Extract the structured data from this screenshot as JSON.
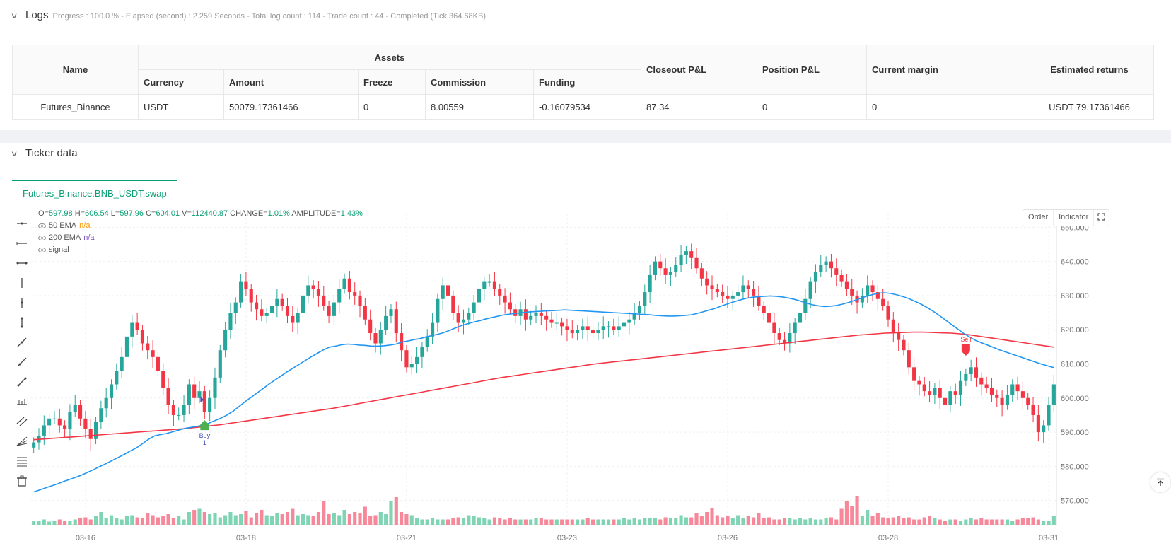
{
  "logs": {
    "title": "Logs",
    "status": "Progress : 100.0 % - Elapsed (second) : 2.259  Seconds - Total log count : 114 - Trade count : 44 - Completed (Tick 364.68KB)"
  },
  "assets_table": {
    "group_header": "Assets",
    "headers": {
      "name": "Name",
      "currency": "Currency",
      "amount": "Amount",
      "freeze": "Freeze",
      "commission": "Commission",
      "funding": "Funding",
      "closeout_pl": "Closeout P&L",
      "position_pl": "Position P&L",
      "current_margin": "Current margin",
      "estimated_returns": "Estimated returns"
    },
    "row": {
      "name": "Futures_Binance",
      "currency": "USDT",
      "amount": "50079.17361466",
      "freeze": "0",
      "commission": "8.00559",
      "funding": "-0.16079534",
      "closeout_pl": "87.34",
      "position_pl": "0",
      "current_margin": "0",
      "estimated_returns": "USDT 79.17361466"
    }
  },
  "ticker": {
    "title": "Ticker data",
    "tab": "Futures_Binance.BNB_USDT.swap",
    "ohlc": {
      "o_label": "O=",
      "o": "597.98",
      "h_label": "H=",
      "h": "606.54",
      "l_label": "L=",
      "l": "597.96",
      "c_label": "C=",
      "c": "604.01",
      "v_label": "V=",
      "v": "112440.87",
      "change_label": "CHANGE=",
      "change": "1.01%",
      "amplitude_label": "AMPLITUDE=",
      "amplitude": "1.43%"
    },
    "legend": [
      {
        "name": "50 EMA",
        "value": "n/a",
        "color": "#ff9800"
      },
      {
        "name": "200 EMA",
        "value": "n/a",
        "color": "#7e57c2"
      },
      {
        "name": "signal",
        "value": ""
      }
    ],
    "buttons": {
      "order": "Order",
      "indicator": "Indicator"
    }
  },
  "chart_data": {
    "type": "candlestick",
    "x_ticks": [
      "03-16",
      "03-18",
      "03-21",
      "03-23",
      "03-26",
      "03-28",
      "03-31"
    ],
    "y_ticks": [
      "650.000",
      "640.000",
      "630.000",
      "620.000",
      "610.000",
      "600.000",
      "590.000",
      "580.000",
      "570.000"
    ],
    "ylim": [
      566,
      654
    ],
    "series_colors": {
      "up": "#26a69a",
      "down": "#f23645",
      "ema50": "#2196f3",
      "ema200": "#f23645"
    },
    "closes": [
      587,
      589,
      592,
      594,
      594,
      592,
      591,
      596,
      598,
      594,
      591,
      588,
      593,
      597,
      600,
      604,
      608,
      612,
      618,
      622,
      620,
      616,
      614,
      612,
      608,
      603,
      598,
      595,
      595,
      598,
      604,
      600,
      602,
      596,
      600,
      606,
      614,
      620,
      625,
      628,
      634,
      632,
      628,
      626,
      624,
      625,
      627,
      629,
      627,
      624,
      622,
      625,
      630,
      633,
      632,
      630,
      627,
      624,
      628,
      632,
      635,
      631,
      630,
      627,
      623,
      619,
      616,
      620,
      624,
      626,
      619,
      614,
      609,
      610,
      612,
      615,
      618,
      622,
      629,
      633,
      630,
      625,
      622,
      623,
      625,
      628,
      632,
      634,
      634,
      632,
      630,
      628,
      626,
      624,
      626,
      623,
      624,
      625,
      624,
      623,
      622,
      622,
      621,
      620,
      619,
      620,
      621,
      620,
      619,
      620,
      621,
      621,
      620,
      621,
      622,
      623,
      625,
      627,
      631,
      636,
      640,
      638,
      636,
      637,
      639,
      642,
      643,
      641,
      638,
      635,
      633,
      632,
      631,
      630,
      629,
      630,
      631,
      633,
      632,
      630,
      627,
      625,
      622,
      619,
      617,
      616,
      619,
      622,
      625,
      629,
      634,
      637,
      639,
      640,
      638,
      636,
      634,
      632,
      630,
      628,
      630,
      633,
      631,
      629,
      627,
      623,
      619,
      617,
      614,
      609,
      605,
      604,
      602,
      601,
      603,
      600,
      598,
      602,
      601,
      605,
      607,
      609,
      606,
      604,
      603,
      601,
      600,
      598,
      601,
      604,
      602,
      600,
      598,
      595,
      590,
      592,
      598,
      604
    ],
    "ema50": [
      572.5,
      573.1,
      573.7,
      574.3,
      574.9,
      575.6,
      576.2,
      576.8,
      577.5,
      578.3,
      579.1,
      580.0,
      580.8,
      581.7,
      582.6,
      583.5,
      584.5,
      585.4,
      586.6,
      587.9,
      588.9,
      589.3,
      589.6,
      590.1,
      590.6,
      591.1,
      591.4,
      591.7,
      592.0,
      592.6,
      593.4,
      594.1,
      595.0,
      596.1,
      597.5,
      598.9,
      600.2,
      601.5,
      602.8,
      604.1,
      605.3,
      606.5,
      607.7,
      608.8,
      609.9,
      611.0,
      612.1,
      613.1,
      614.1,
      614.9,
      615.2,
      615.6,
      615.8,
      615.7,
      615.5,
      615.4,
      615.2,
      615.2,
      615.3,
      615.5,
      615.8,
      616.4,
      616.7,
      617.1,
      617.4,
      617.9,
      618.3,
      618.7,
      619.2,
      619.9,
      620.6,
      621.3,
      621.8,
      622.3,
      622.7,
      623.2,
      623.6,
      624.0,
      624.4,
      624.6,
      624.8,
      625.0,
      625.2,
      625.3,
      625.4,
      625.5,
      625.6,
      625.7,
      625.8,
      625.7,
      625.6,
      625.5,
      625.4,
      625.3,
      625.2,
      625.1,
      625.0,
      624.9,
      624.8,
      624.7,
      624.6,
      624.5,
      624.4,
      624.2,
      624.1,
      624.0,
      624.0,
      624.1,
      624.2,
      624.4,
      624.8,
      625.3,
      625.8,
      626.3,
      627.0,
      627.6,
      628.2,
      628.7,
      629.2,
      629.5,
      629.7,
      629.8,
      629.9,
      629.8,
      629.6,
      629.3,
      628.9,
      628.4,
      627.8,
      627.3,
      627.0,
      626.8,
      626.9,
      627.1,
      627.5,
      628.0,
      628.6,
      629.2,
      629.8,
      630.3,
      630.7,
      630.8,
      630.6,
      630.2,
      629.7,
      629.1,
      628.3,
      627.5,
      626.5,
      625.4,
      624.2,
      622.9,
      621.6,
      620.3,
      619.0,
      617.9,
      616.9,
      616.2,
      615.5,
      614.8,
      614.1,
      613.5,
      612.9,
      612.3,
      611.7,
      611.1,
      610.5,
      609.9,
      609.4,
      608.9
    ],
    "ema200": [
      587.8,
      588.0,
      588.2,
      588.4,
      588.6,
      588.8,
      589.0,
      589.2,
      589.4,
      589.6,
      589.8,
      590.0,
      590.2,
      590.4,
      590.6,
      590.8,
      591.0,
      591.3,
      591.6,
      591.9,
      592.2,
      592.6,
      593.0,
      593.4,
      593.8,
      594.2,
      594.6,
      595.0,
      595.4,
      595.8,
      596.2,
      596.6,
      597.0,
      597.5,
      598.0,
      598.5,
      599.0,
      599.5,
      600.0,
      600.5,
      601.0,
      601.5,
      602.0,
      602.5,
      603.0,
      603.5,
      604.0,
      604.5,
      605.0,
      605.5,
      606.0,
      606.4,
      606.8,
      607.2,
      607.6,
      608.0,
      608.4,
      608.8,
      609.2,
      609.6,
      610.0,
      610.3,
      610.6,
      610.9,
      611.2,
      611.5,
      611.8,
      612.1,
      612.4,
      612.7,
      613.0,
      613.3,
      613.6,
      613.9,
      614.2,
      614.5,
      614.8,
      615.1,
      615.4,
      615.7,
      616.0,
      616.3,
      616.6,
      616.9,
      617.2,
      617.5,
      617.8,
      618.1,
      618.4,
      618.6,
      618.8,
      619.0,
      619.1,
      619.2,
      619.3,
      619.3,
      619.2,
      619.1,
      619.0,
      618.8,
      618.5,
      618.1,
      617.7,
      617.3,
      616.9,
      616.5,
      616.1,
      615.7,
      615.3,
      614.9
    ],
    "volumes": [
      4,
      4,
      5,
      3,
      4,
      5,
      4,
      4,
      5,
      6,
      7,
      5,
      8,
      12,
      6,
      9,
      6,
      5,
      8,
      9,
      7,
      6,
      11,
      9,
      7,
      8,
      10,
      6,
      8,
      5,
      12,
      14,
      15,
      12,
      10,
      11,
      7,
      9,
      12,
      9,
      10,
      13,
      7,
      11,
      14,
      9,
      8,
      11,
      10,
      12,
      15,
      9,
      10,
      9,
      8,
      12,
      22,
      10,
      11,
      9,
      14,
      10,
      12,
      11,
      17,
      8,
      9,
      12,
      10,
      22,
      26,
      12,
      10,
      9,
      6,
      5,
      5,
      6,
      5,
      5,
      5,
      6,
      7,
      6,
      9,
      8,
      7,
      6,
      5,
      7,
      6,
      5,
      6,
      5,
      5,
      5,
      5,
      6,
      6,
      5,
      5,
      5,
      5,
      5,
      5,
      5,
      5,
      6,
      5,
      5,
      5,
      5,
      5,
      5,
      6,
      5,
      6,
      5,
      6,
      6,
      6,
      5,
      7,
      6,
      6,
      9,
      7,
      7,
      11,
      8,
      12,
      16,
      9,
      7,
      8,
      6,
      9,
      6,
      8,
      7,
      11,
      6,
      7,
      5,
      5,
      6,
      6,
      5,
      6,
      5,
      6,
      5,
      5,
      6,
      7,
      5,
      15,
      22,
      18,
      27,
      8,
      14,
      8,
      11,
      7,
      6,
      7,
      8,
      6,
      7,
      5,
      5,
      7,
      8,
      6,
      5,
      4,
      5,
      5,
      4,
      5,
      6,
      5,
      6,
      5,
      5,
      5,
      5,
      5,
      4,
      5,
      6,
      6,
      7,
      5,
      4,
      4,
      8,
      6,
      7,
      8,
      8
    ],
    "signals": [
      {
        "label": "Buy",
        "sub": "1",
        "color": "#4caf50",
        "index": 33
      },
      {
        "label": "Sell",
        "color": "#f23645",
        "index": 180
      }
    ]
  }
}
